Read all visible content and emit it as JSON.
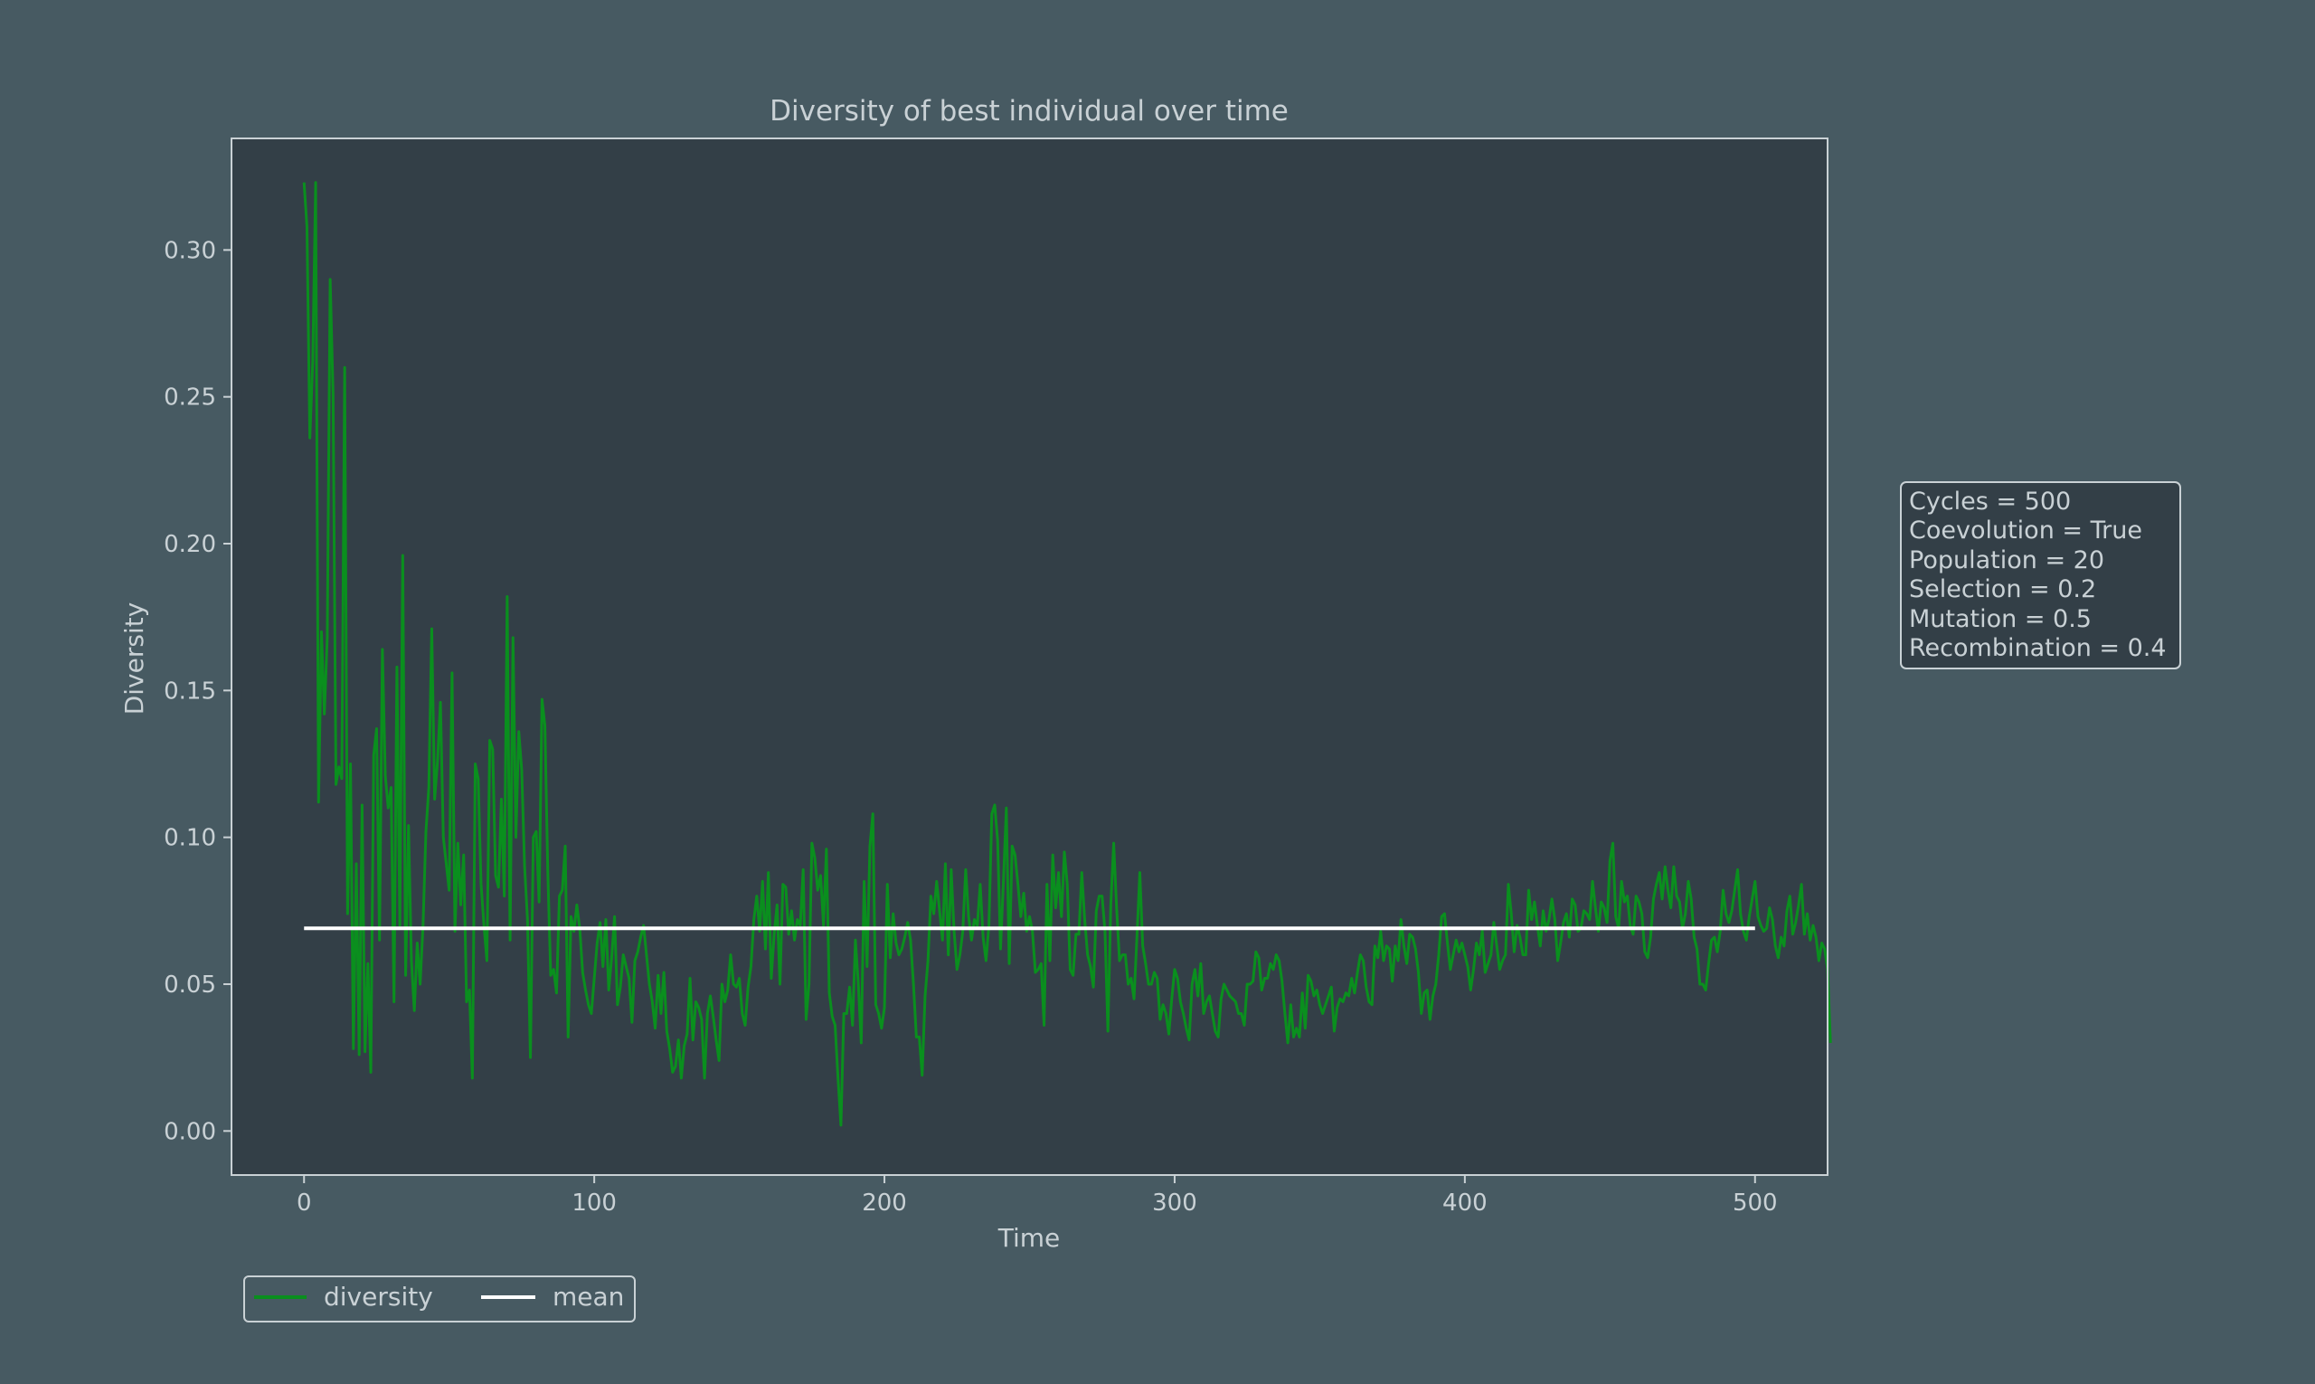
{
  "colors": {
    "background": "#475a62",
    "plot_background": "#333f47",
    "axis": "#c9d1d5",
    "text": "#c9d1d5",
    "diversity_line": "#0a8f1e",
    "mean_line": "#ffffff"
  },
  "chart_data": {
    "type": "line",
    "title": "Diversity of best individual over time",
    "xlabel": "Time",
    "ylabel": "Diversity",
    "xlim": [
      -25,
      525
    ],
    "ylim": [
      -0.015,
      0.338
    ],
    "xticks": [
      0,
      100,
      200,
      300,
      400,
      500
    ],
    "xtick_labels": [
      "0",
      "100",
      "200",
      "300",
      "400",
      "500"
    ],
    "yticks": [
      0.0,
      0.05,
      0.1,
      0.15,
      0.2,
      0.25,
      0.3
    ],
    "ytick_labels": [
      "0.00",
      "0.05",
      "0.10",
      "0.15",
      "0.20",
      "0.25",
      "0.30"
    ],
    "grid": false,
    "legend_placement": "below-left",
    "series": [
      {
        "name": "diversity",
        "color": "#0a8f1e",
        "x_start": 0,
        "x_step": 1,
        "values": [
          0.323,
          0.308,
          0.236,
          0.262,
          0.323,
          0.112,
          0.17,
          0.142,
          0.168,
          0.29,
          0.251,
          0.118,
          0.124,
          0.12,
          0.26,
          0.074,
          0.125,
          0.028,
          0.091,
          0.026,
          0.111,
          0.027,
          0.057,
          0.02,
          0.128,
          0.137,
          0.065,
          0.164,
          0.121,
          0.11,
          0.117,
          0.044,
          0.158,
          0.07,
          0.196,
          0.053,
          0.104,
          0.058,
          0.041,
          0.064,
          0.05,
          0.07,
          0.102,
          0.117,
          0.171,
          0.113,
          0.126,
          0.146,
          0.1,
          0.091,
          0.082,
          0.156,
          0.068,
          0.098,
          0.077,
          0.094,
          0.044,
          0.048,
          0.018,
          0.125,
          0.12,
          0.084,
          0.07,
          0.058,
          0.133,
          0.13,
          0.087,
          0.083,
          0.113,
          0.08,
          0.182,
          0.065,
          0.168,
          0.1,
          0.136,
          0.123,
          0.09,
          0.072,
          0.025,
          0.1,
          0.102,
          0.078,
          0.147,
          0.138,
          0.088,
          0.053,
          0.055,
          0.047,
          0.08,
          0.082,
          0.097,
          0.032,
          0.073,
          0.068,
          0.077,
          0.069,
          0.054,
          0.048,
          0.043,
          0.04,
          0.052,
          0.064,
          0.071,
          0.056,
          0.072,
          0.048,
          0.059,
          0.073,
          0.043,
          0.049,
          0.06,
          0.056,
          0.052,
          0.037,
          0.058,
          0.061,
          0.066,
          0.07,
          0.06,
          0.05,
          0.044,
          0.035,
          0.053,
          0.04,
          0.054,
          0.034,
          0.028,
          0.02,
          0.022,
          0.031,
          0.018,
          0.029,
          0.033,
          0.052,
          0.031,
          0.044,
          0.042,
          0.038,
          0.018,
          0.04,
          0.046,
          0.039,
          0.031,
          0.024,
          0.05,
          0.044,
          0.048,
          0.06,
          0.05,
          0.049,
          0.052,
          0.04,
          0.036,
          0.049,
          0.056,
          0.072,
          0.08,
          0.068,
          0.085,
          0.062,
          0.088,
          0.052,
          0.067,
          0.077,
          0.05,
          0.084,
          0.083,
          0.067,
          0.075,
          0.065,
          0.072,
          0.07,
          0.089,
          0.038,
          0.05,
          0.098,
          0.093,
          0.082,
          0.087,
          0.07,
          0.096,
          0.047,
          0.039,
          0.036,
          0.018,
          0.002,
          0.04,
          0.04,
          0.049,
          0.036,
          0.065,
          0.05,
          0.03,
          0.085,
          0.056,
          0.097,
          0.108,
          0.043,
          0.04,
          0.035,
          0.042,
          0.084,
          0.059,
          0.074,
          0.064,
          0.06,
          0.062,
          0.066,
          0.071,
          0.065,
          0.05,
          0.032,
          0.032,
          0.019,
          0.046,
          0.058,
          0.08,
          0.074,
          0.085,
          0.075,
          0.065,
          0.091,
          0.06,
          0.089,
          0.068,
          0.055,
          0.06,
          0.068,
          0.089,
          0.073,
          0.065,
          0.072,
          0.07,
          0.084,
          0.066,
          0.058,
          0.07,
          0.108,
          0.111,
          0.099,
          0.062,
          0.085,
          0.11,
          0.057,
          0.097,
          0.094,
          0.084,
          0.073,
          0.081,
          0.068,
          0.073,
          0.068,
          0.054,
          0.055,
          0.057,
          0.036,
          0.084,
          0.058,
          0.094,
          0.076,
          0.088,
          0.073,
          0.095,
          0.084,
          0.055,
          0.053,
          0.067,
          0.067,
          0.088,
          0.072,
          0.06,
          0.056,
          0.049,
          0.075,
          0.08,
          0.08,
          0.068,
          0.034,
          0.077,
          0.098,
          0.076,
          0.058,
          0.06,
          0.06,
          0.05,
          0.052,
          0.045,
          0.066,
          0.088,
          0.063,
          0.057,
          0.05,
          0.05,
          0.054,
          0.052,
          0.038,
          0.043,
          0.04,
          0.033,
          0.045,
          0.055,
          0.052,
          0.044,
          0.04,
          0.035,
          0.031,
          0.05,
          0.055,
          0.046,
          0.057,
          0.04,
          0.044,
          0.046,
          0.04,
          0.034,
          0.032,
          0.045,
          0.05,
          0.048,
          0.046,
          0.045,
          0.044,
          0.04,
          0.04,
          0.036,
          0.05,
          0.05,
          0.051,
          0.061,
          0.059,
          0.048,
          0.052,
          0.052,
          0.057,
          0.055,
          0.06,
          0.058,
          0.051,
          0.04,
          0.03,
          0.043,
          0.032,
          0.035,
          0.032,
          0.047,
          0.035,
          0.053,
          0.051,
          0.046,
          0.048,
          0.043,
          0.04,
          0.043,
          0.046,
          0.049,
          0.034,
          0.042,
          0.045,
          0.044,
          0.047,
          0.046,
          0.052,
          0.047,
          0.054,
          0.06,
          0.058,
          0.049,
          0.044,
          0.043,
          0.063,
          0.059,
          0.068,
          0.058,
          0.063,
          0.062,
          0.051,
          0.063,
          0.058,
          0.072,
          0.063,
          0.057,
          0.067,
          0.066,
          0.062,
          0.054,
          0.04,
          0.047,
          0.048,
          0.038,
          0.046,
          0.05,
          0.06,
          0.073,
          0.074,
          0.064,
          0.055,
          0.06,
          0.065,
          0.061,
          0.064,
          0.06,
          0.056,
          0.048,
          0.055,
          0.064,
          0.06,
          0.068,
          0.054,
          0.057,
          0.06,
          0.071,
          0.063,
          0.055,
          0.058,
          0.06,
          0.084,
          0.074,
          0.061,
          0.07,
          0.066,
          0.06,
          0.06,
          0.082,
          0.072,
          0.078,
          0.07,
          0.063,
          0.075,
          0.068,
          0.072,
          0.079,
          0.072,
          0.058,
          0.064,
          0.071,
          0.074,
          0.066,
          0.079,
          0.077,
          0.068,
          0.069,
          0.075,
          0.074,
          0.072,
          0.085,
          0.076,
          0.068,
          0.078,
          0.076,
          0.071,
          0.092,
          0.098,
          0.073,
          0.069,
          0.085,
          0.078,
          0.08,
          0.07,
          0.067,
          0.08,
          0.078,
          0.074,
          0.061,
          0.059,
          0.066,
          0.079,
          0.084,
          0.088,
          0.079,
          0.09,
          0.082,
          0.076,
          0.09,
          0.08,
          0.078,
          0.069,
          0.074,
          0.085,
          0.079,
          0.066,
          0.062,
          0.05,
          0.05,
          0.048,
          0.057,
          0.065,
          0.066,
          0.061,
          0.068,
          0.082,
          0.074,
          0.071,
          0.075,
          0.082,
          0.089,
          0.074,
          0.068,
          0.065,
          0.073,
          0.079,
          0.085,
          0.073,
          0.07,
          0.068,
          0.069,
          0.076,
          0.072,
          0.063,
          0.059,
          0.066,
          0.063,
          0.075,
          0.08,
          0.067,
          0.071,
          0.077,
          0.084,
          0.067,
          0.074,
          0.065,
          0.07,
          0.066,
          0.058,
          0.064,
          0.062,
          0.055,
          0.03
        ]
      },
      {
        "name": "mean",
        "color": "#ffffff",
        "x": [
          0,
          500
        ],
        "values": [
          0.069,
          0.069
        ]
      }
    ],
    "annotation_lines": [
      "Cycles = 500",
      "Coevolution = True",
      "Population = 20",
      "Selection = 0.2",
      "Mutation = 0.5",
      "Recombination = 0.4"
    ]
  }
}
